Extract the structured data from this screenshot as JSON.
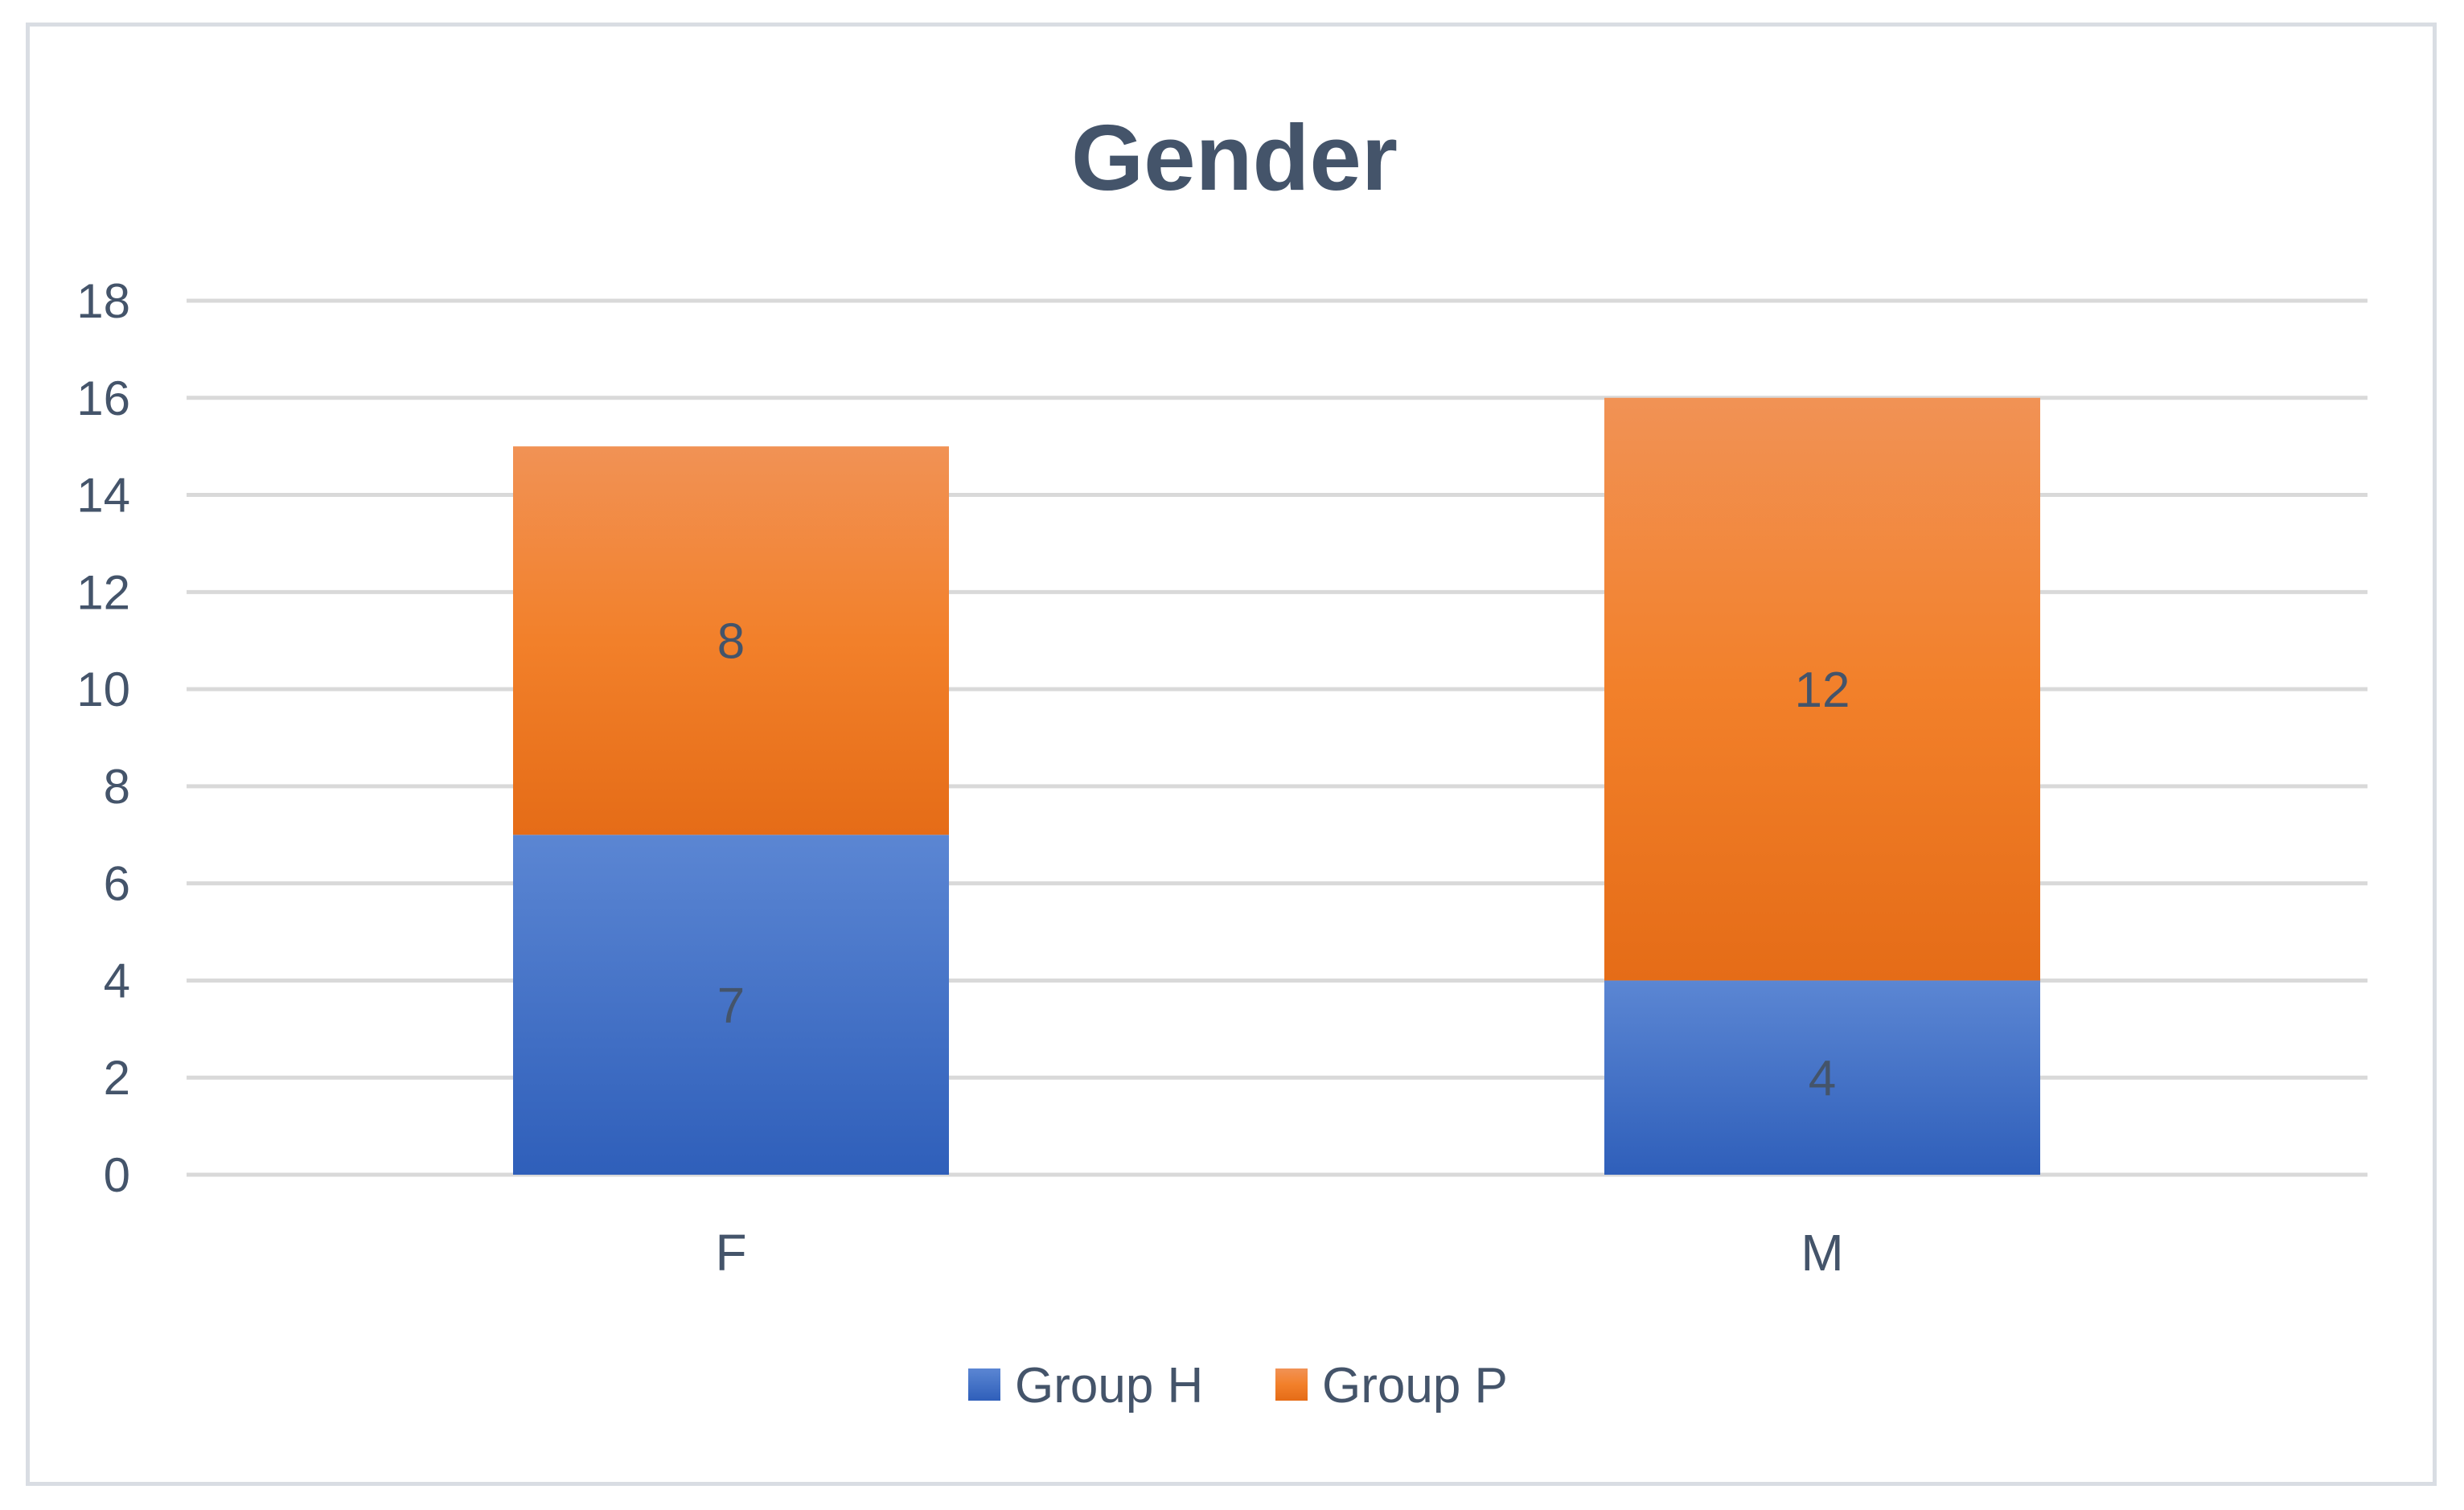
{
  "chart_data": {
    "type": "bar",
    "stacked": true,
    "title": "Gender",
    "categories": [
      "F",
      "M"
    ],
    "series": [
      {
        "name": "Group H",
        "values": [
          7,
          4
        ],
        "color": "#4472c4"
      },
      {
        "name": "Group P",
        "values": [
          8,
          12
        ],
        "color": "#ed7d31"
      }
    ],
    "data_labels": true,
    "ylim": [
      0,
      18
    ],
    "yticks": [
      0,
      2,
      4,
      6,
      8,
      10,
      12,
      14,
      16,
      18
    ],
    "grid": true,
    "legend_position": "bottom"
  }
}
